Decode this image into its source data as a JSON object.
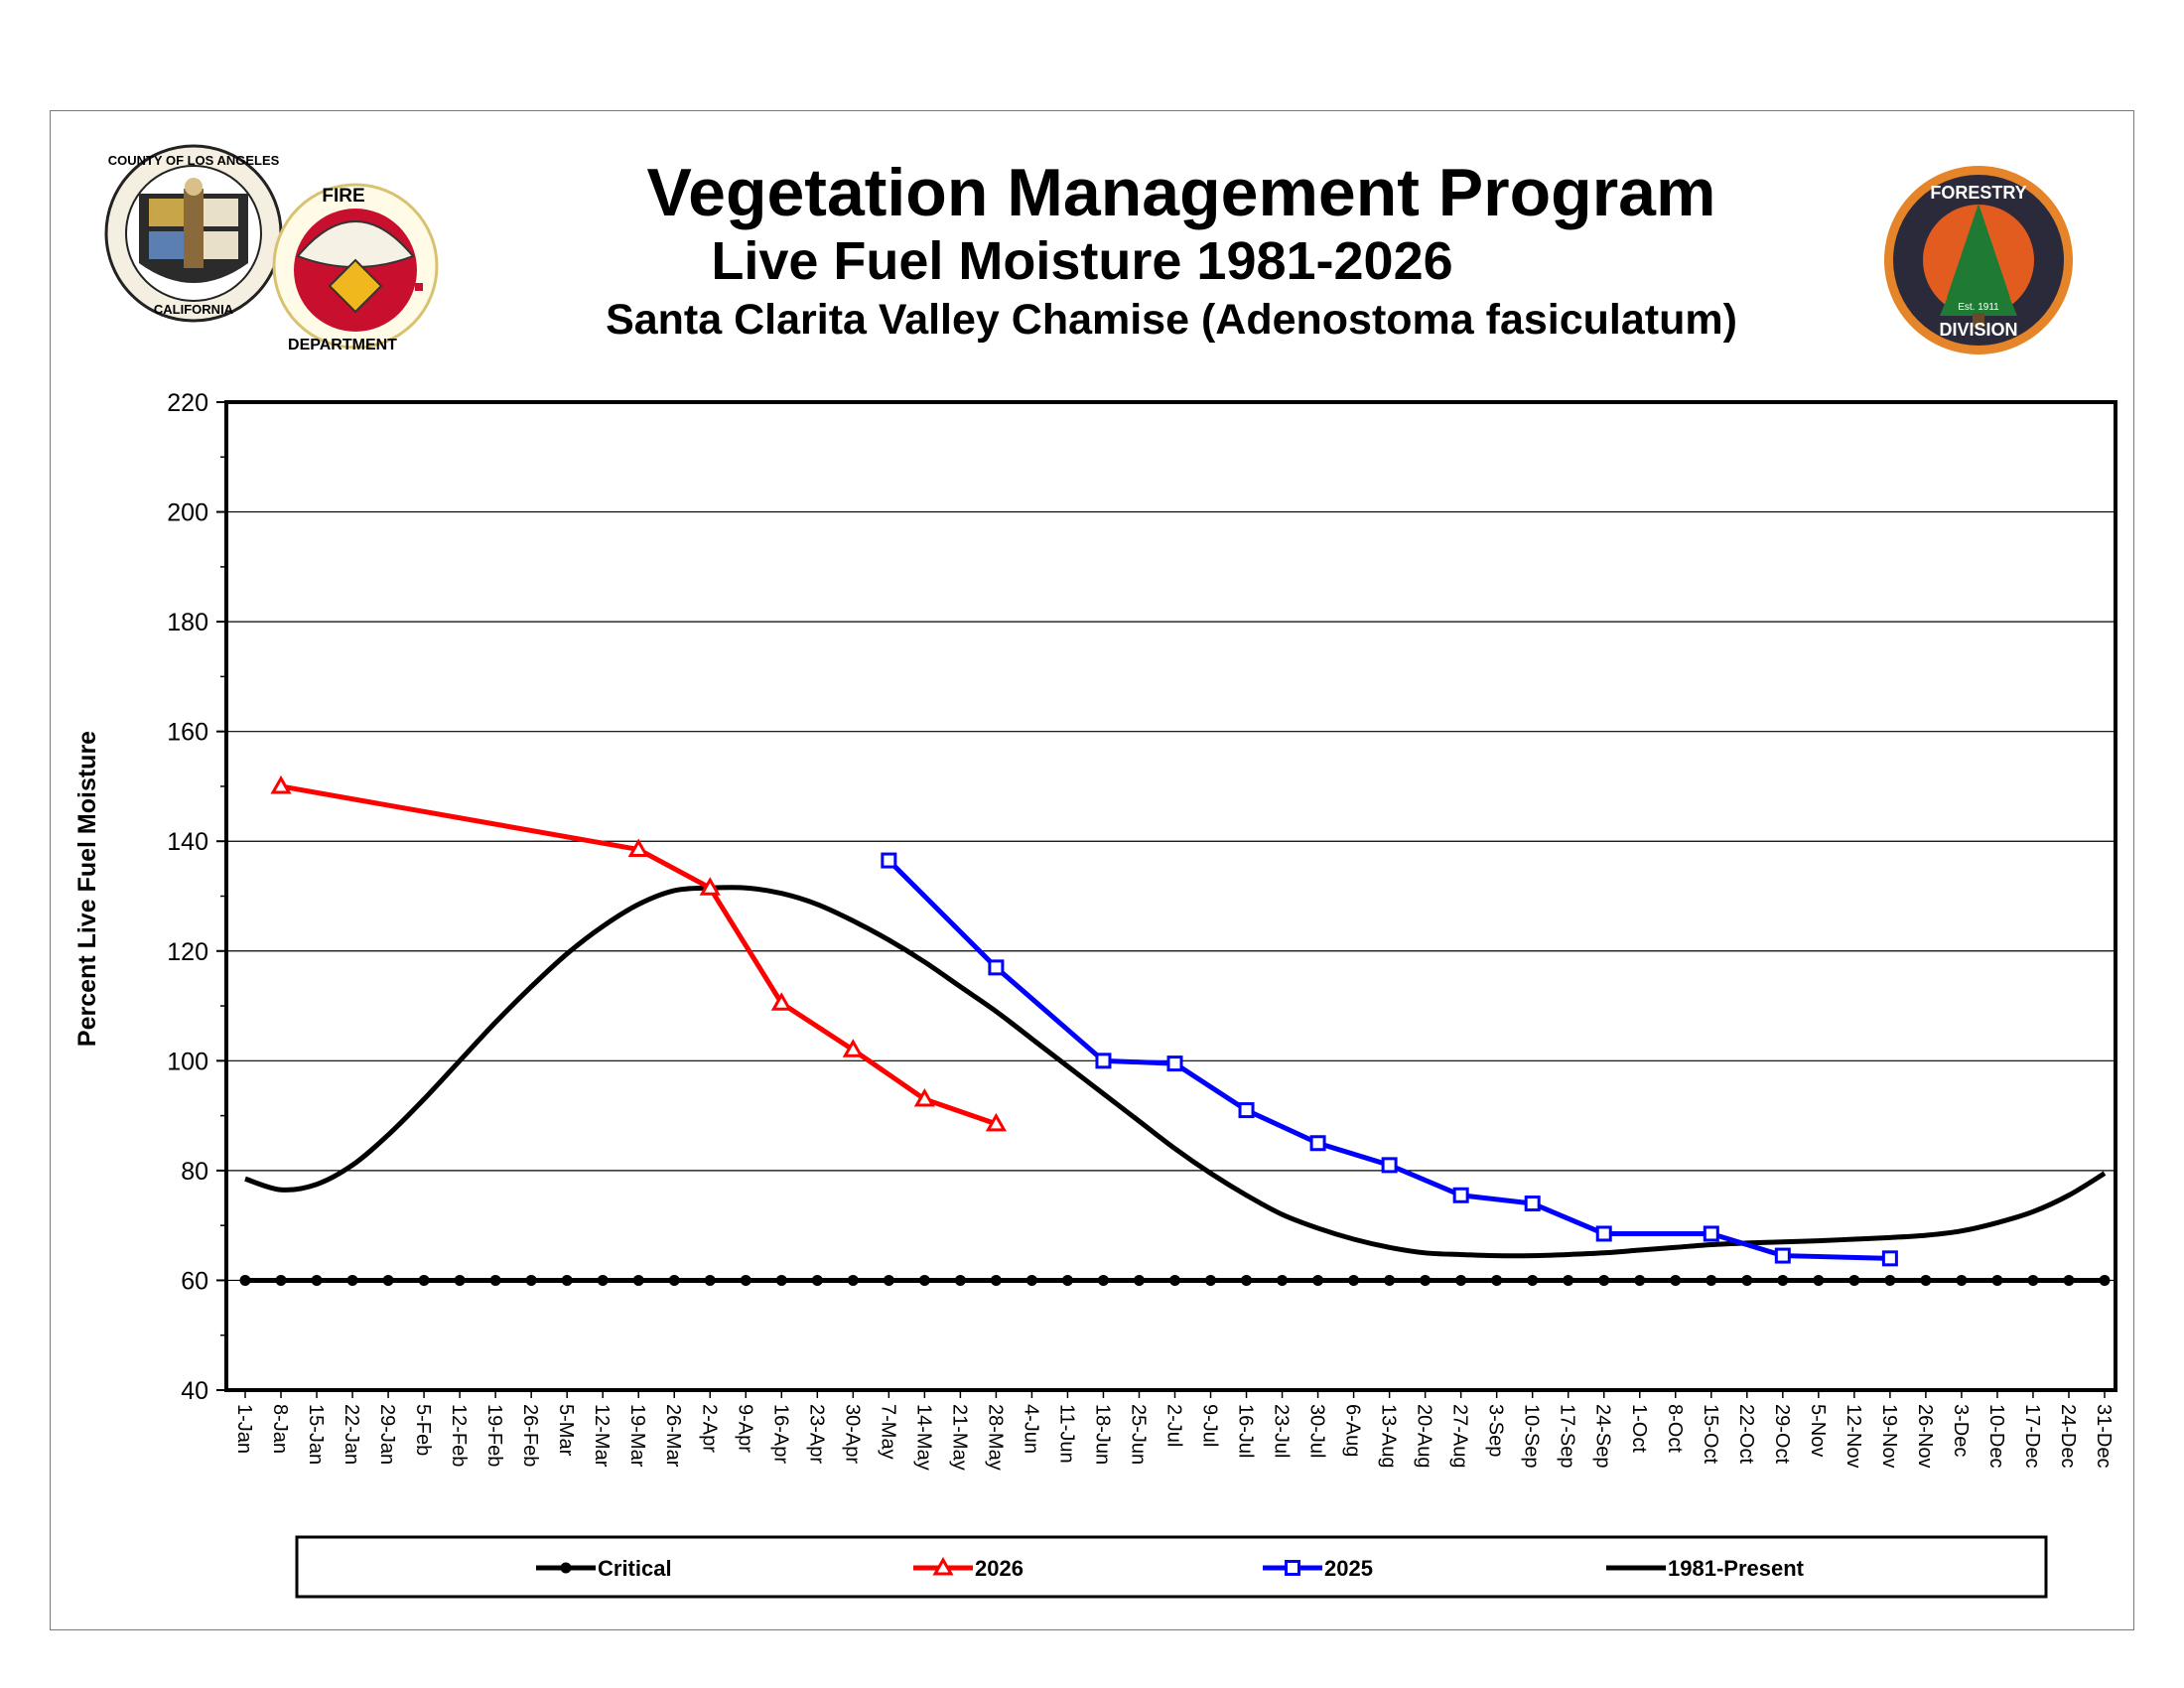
{
  "header": {
    "title": "Vegetation Management Program",
    "subtitle": "Live Fuel Moisture 1981-2026",
    "site": "Santa Clarita Valley Chamise (Adenostoma fasiculatum)"
  },
  "logos": {
    "county_seal_text": [
      "COUNTY OF LOS ANGELES",
      "CALIFORNIA"
    ],
    "fire_department_text": [
      "FIRE",
      "DEPARTMENT"
    ],
    "forestry_division_text": [
      "FORESTRY",
      "DIVISION",
      "Est. 1911"
    ]
  },
  "colors": {
    "critical": "#000000",
    "y2026": "#ff0000",
    "y2025": "#0000ff",
    "average": "#000000",
    "grid": "#000000"
  },
  "chart_data": {
    "type": "line",
    "ylabel": "Percent Live Fuel Moisture",
    "xlabel": "",
    "ylim": [
      40,
      220
    ],
    "yticks": [
      40,
      60,
      80,
      100,
      120,
      140,
      160,
      180,
      200,
      220
    ],
    "grid": "horizontal",
    "legend_position": "bottom",
    "categories": [
      "1-Jan",
      "8-Jan",
      "15-Jan",
      "22-Jan",
      "29-Jan",
      "5-Feb",
      "12-Feb",
      "19-Feb",
      "26-Feb",
      "5-Mar",
      "12-Mar",
      "19-Mar",
      "26-Mar",
      "2-Apr",
      "9-Apr",
      "16-Apr",
      "23-Apr",
      "30-Apr",
      "7-May",
      "14-May",
      "21-May",
      "28-May",
      "4-Jun",
      "11-Jun",
      "18-Jun",
      "25-Jun",
      "2-Jul",
      "9-Jul",
      "16-Jul",
      "23-Jul",
      "30-Jul",
      "6-Aug",
      "13-Aug",
      "20-Aug",
      "27-Aug",
      "3-Sep",
      "10-Sep",
      "17-Sep",
      "24-Sep",
      "1-Oct",
      "8-Oct",
      "15-Oct",
      "22-Oct",
      "29-Oct",
      "5-Nov",
      "12-Nov",
      "19-Nov",
      "26-Nov",
      "3-Dec",
      "10-Dec",
      "17-Dec",
      "24-Dec",
      "31-Dec"
    ],
    "series": [
      {
        "name": "Critical",
        "style": "line-circle",
        "values": [
          60,
          60,
          60,
          60,
          60,
          60,
          60,
          60,
          60,
          60,
          60,
          60,
          60,
          60,
          60,
          60,
          60,
          60,
          60,
          60,
          60,
          60,
          60,
          60,
          60,
          60,
          60,
          60,
          60,
          60,
          60,
          60,
          60,
          60,
          60,
          60,
          60,
          60,
          60,
          60,
          60,
          60,
          60,
          60,
          60,
          60,
          60,
          60,
          60,
          60,
          60,
          60,
          60
        ]
      },
      {
        "name": "2026",
        "style": "line-triangle",
        "points": [
          {
            "x": "8-Jan",
            "y": 150
          },
          {
            "x": "19-Mar",
            "y": 138.5
          },
          {
            "x": "2-Apr",
            "y": 131.5
          },
          {
            "x": "16-Apr",
            "y": 110.5
          },
          {
            "x": "30-Apr",
            "y": 102
          },
          {
            "x": "14-May",
            "y": 93
          },
          {
            "x": "28-May",
            "y": 88.5
          }
        ]
      },
      {
        "name": "2025",
        "style": "line-square",
        "points": [
          {
            "x": "7-May",
            "y": 136.5
          },
          {
            "x": "28-May",
            "y": 117
          },
          {
            "x": "18-Jun",
            "y": 100
          },
          {
            "x": "2-Jul",
            "y": 99.5
          },
          {
            "x": "16-Jul",
            "y": 91
          },
          {
            "x": "30-Jul",
            "y": 85
          },
          {
            "x": "13-Aug",
            "y": 81
          },
          {
            "x": "27-Aug",
            "y": 75.5
          },
          {
            "x": "10-Sep",
            "y": 74
          },
          {
            "x": "24-Sep",
            "y": 68.5
          },
          {
            "x": "15-Oct",
            "y": 68.5
          },
          {
            "x": "29-Oct",
            "y": 64.5
          },
          {
            "x": "19-Nov",
            "y": 64
          }
        ]
      },
      {
        "name": "1981-Present",
        "style": "smooth-line",
        "points": [
          {
            "x": "1-Jan",
            "y": 78.5
          },
          {
            "x": "8-Jan",
            "y": 76.5
          },
          {
            "x": "15-Jan",
            "y": 77.5
          },
          {
            "x": "22-Jan",
            "y": 81
          },
          {
            "x": "29-Jan",
            "y": 86.5
          },
          {
            "x": "5-Feb",
            "y": 93
          },
          {
            "x": "12-Feb",
            "y": 100
          },
          {
            "x": "19-Feb",
            "y": 107
          },
          {
            "x": "26-Feb",
            "y": 113.5
          },
          {
            "x": "5-Mar",
            "y": 119.5
          },
          {
            "x": "12-Mar",
            "y": 124.5
          },
          {
            "x": "19-Mar",
            "y": 128.5
          },
          {
            "x": "26-Mar",
            "y": 131
          },
          {
            "x": "2-Apr",
            "y": 131.5
          },
          {
            "x": "9-Apr",
            "y": 131.5
          },
          {
            "x": "16-Apr",
            "y": 130.5
          },
          {
            "x": "23-Apr",
            "y": 128.5
          },
          {
            "x": "30-Apr",
            "y": 125.5
          },
          {
            "x": "7-May",
            "y": 122
          },
          {
            "x": "14-May",
            "y": 118
          },
          {
            "x": "21-May",
            "y": 113.5
          },
          {
            "x": "28-May",
            "y": 109
          },
          {
            "x": "4-Jun",
            "y": 104
          },
          {
            "x": "11-Jun",
            "y": 99
          },
          {
            "x": "18-Jun",
            "y": 94
          },
          {
            "x": "25-Jun",
            "y": 89
          },
          {
            "x": "2-Jul",
            "y": 84
          },
          {
            "x": "9-Jul",
            "y": 79.5
          },
          {
            "x": "16-Jul",
            "y": 75.5
          },
          {
            "x": "23-Jul",
            "y": 72
          },
          {
            "x": "30-Jul",
            "y": 69.5
          },
          {
            "x": "6-Aug",
            "y": 67.5
          },
          {
            "x": "13-Aug",
            "y": 66
          },
          {
            "x": "20-Aug",
            "y": 65
          },
          {
            "x": "27-Aug",
            "y": 64.7
          },
          {
            "x": "3-Sep",
            "y": 64.5
          },
          {
            "x": "10-Sep",
            "y": 64.5
          },
          {
            "x": "17-Sep",
            "y": 64.7
          },
          {
            "x": "24-Sep",
            "y": 65
          },
          {
            "x": "1-Oct",
            "y": 65.5
          },
          {
            "x": "8-Oct",
            "y": 66
          },
          {
            "x": "15-Oct",
            "y": 66.5
          },
          {
            "x": "22-Oct",
            "y": 66.8
          },
          {
            "x": "29-Oct",
            "y": 67
          },
          {
            "x": "5-Nov",
            "y": 67.2
          },
          {
            "x": "12-Nov",
            "y": 67.5
          },
          {
            "x": "19-Nov",
            "y": 67.8
          },
          {
            "x": "26-Nov",
            "y": 68.2
          },
          {
            "x": "3-Dec",
            "y": 69
          },
          {
            "x": "10-Dec",
            "y": 70.5
          },
          {
            "x": "17-Dec",
            "y": 72.5
          },
          {
            "x": "24-Dec",
            "y": 75.5
          },
          {
            "x": "31-Dec",
            "y": 79.5
          }
        ]
      }
    ]
  }
}
